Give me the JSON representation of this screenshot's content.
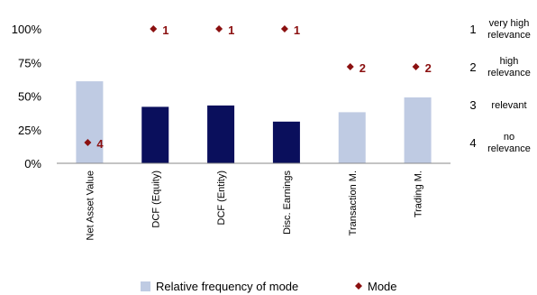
{
  "chart_data": {
    "type": "bar",
    "categories": [
      "Net Asset Value",
      "DCF (Equity)",
      "DCF (Entity)",
      "Disc. Earnings",
      "Transaction M.",
      "Trading M."
    ],
    "series": [
      {
        "name": "Relative frequency of mode",
        "axis": "left",
        "values": [
          0.61,
          0.42,
          0.43,
          0.31,
          0.38,
          0.49
        ],
        "highlight_categories": [
          "DCF (Equity)",
          "DCF (Entity)",
          "Disc. Earnings"
        ]
      },
      {
        "name": "Mode",
        "axis": "right",
        "marker": "diamond",
        "values": [
          4,
          1,
          1,
          1,
          2,
          2
        ],
        "labels": [
          "4",
          "1",
          "1",
          "1",
          "2",
          "2"
        ]
      }
    ],
    "left_axis": {
      "ticks": [
        "0%",
        "25%",
        "50%",
        "75%",
        "100%"
      ],
      "tick_values": [
        0,
        0.25,
        0.5,
        0.75,
        1.0
      ],
      "ylim": [
        0,
        1
      ]
    },
    "right_axis": {
      "ticks": [
        "1",
        "2",
        "3",
        "4"
      ],
      "tick_values": [
        1,
        2,
        3,
        4
      ],
      "ylim": [
        1,
        4
      ],
      "inverted": true,
      "labels": [
        [
          "very high",
          "relevance"
        ],
        [
          "high",
          "relevance"
        ],
        [
          "relevant"
        ],
        [
          "no",
          "relevance"
        ]
      ]
    },
    "grid": false,
    "legend_position": "bottom",
    "colors": {
      "bar_light": "#bfcbe3",
      "bar_dark": "#0a0f5c",
      "marker": "#8b1010"
    }
  }
}
